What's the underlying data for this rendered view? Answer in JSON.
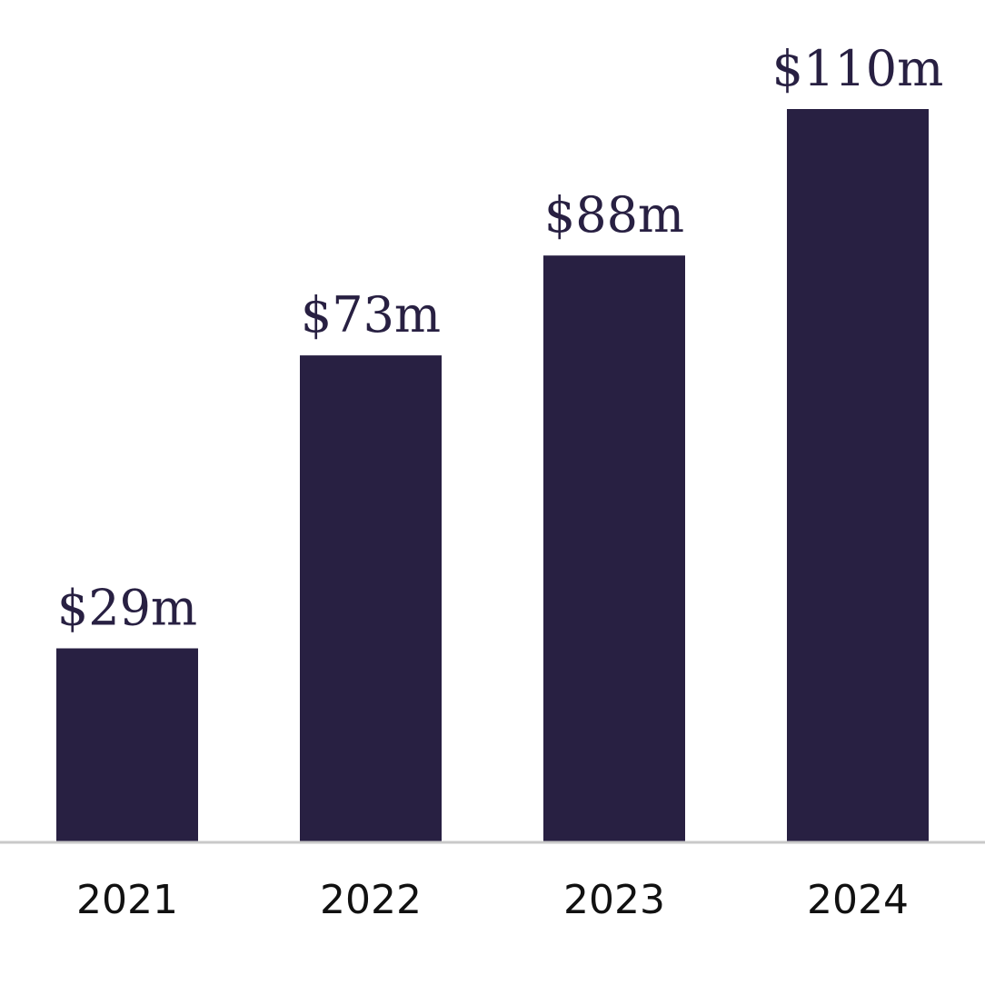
{
  "colors": {
    "bar": "#282042",
    "baseline": "#c9c9c9",
    "label": "#282042",
    "tick": "#111111",
    "background": "#ffffff"
  },
  "chart_data": {
    "type": "bar",
    "categories": [
      "2021",
      "2022",
      "2023",
      "2024"
    ],
    "values": [
      29,
      73,
      88,
      110
    ],
    "value_labels": [
      "$29m",
      "$73m",
      "$88m",
      "$110m"
    ],
    "title": "",
    "xlabel": "",
    "ylabel": "",
    "ylim": [
      0,
      110
    ],
    "grid": false,
    "legend": "none"
  }
}
